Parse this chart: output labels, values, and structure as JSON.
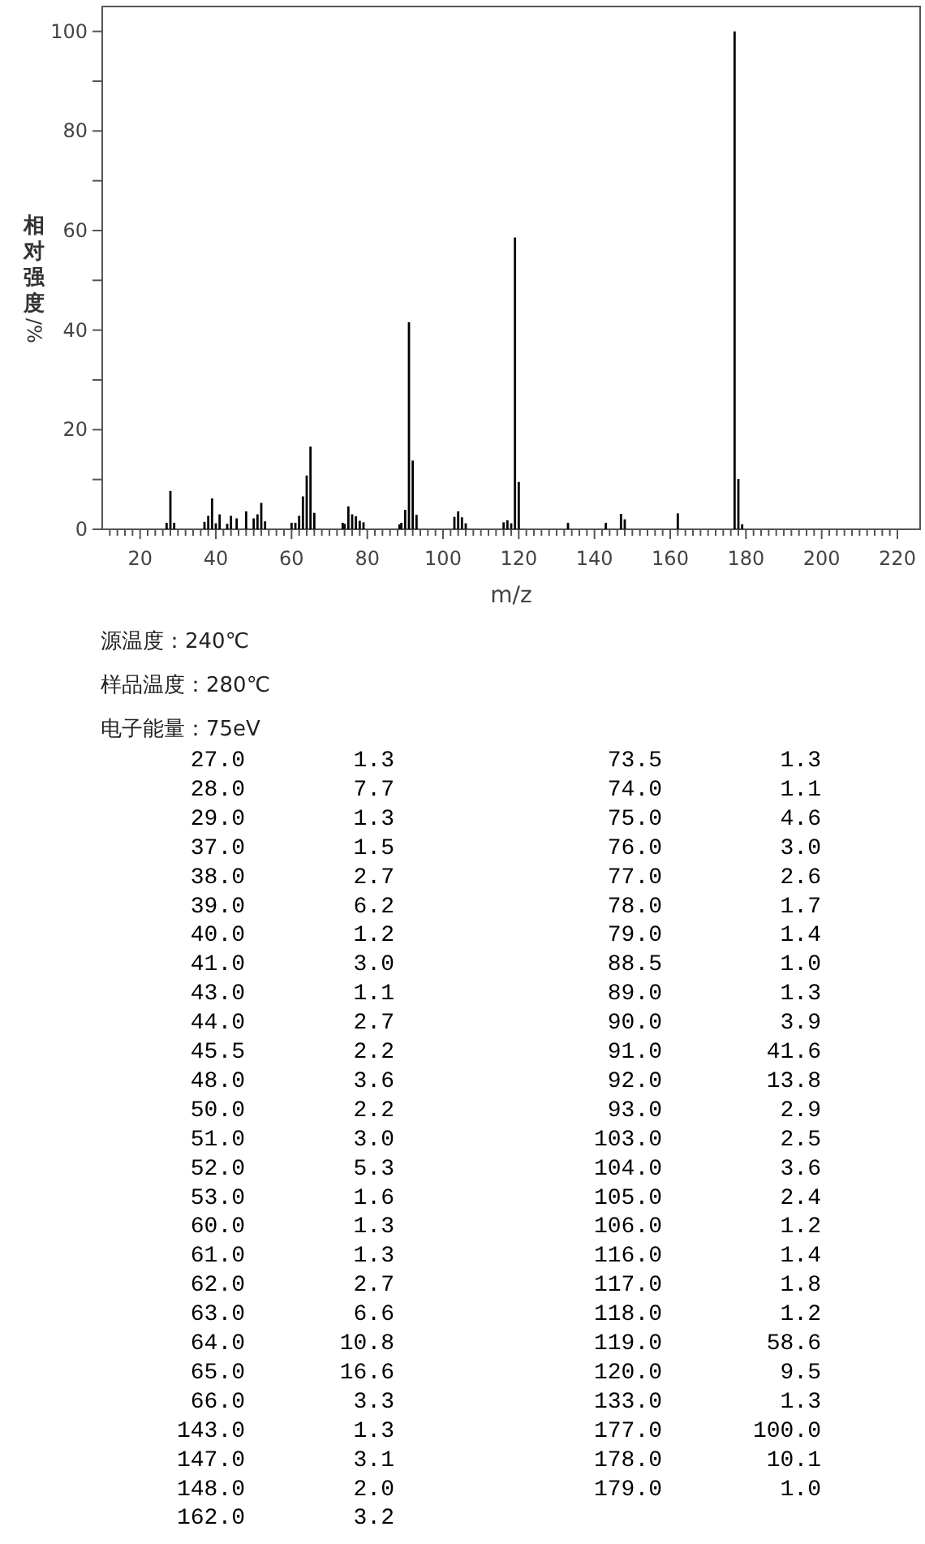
{
  "chart_data": [
    {
      "type": "bar",
      "xlabel": "m/z",
      "ylabel": "相对强度/%",
      "annotations": [
        "源温度：240℃",
        "样品温度：280℃",
        "电子能量：75eV"
      ],
      "x": [
        27,
        28,
        29,
        37,
        38,
        39,
        40,
        41,
        43,
        44,
        45.5,
        48,
        50,
        51,
        52,
        53,
        60,
        61,
        62,
        63,
        64,
        65,
        66,
        73.5,
        74,
        75,
        76,
        77,
        78,
        79,
        88.5,
        89,
        90,
        91,
        92,
        93,
        103,
        104,
        105,
        106,
        116,
        117,
        118,
        119,
        120,
        133,
        143,
        147,
        148,
        162,
        177,
        178,
        179
      ],
      "values": [
        1.3,
        7.7,
        1.3,
        1.5,
        2.7,
        6.2,
        1.2,
        3.0,
        1.1,
        2.7,
        2.2,
        3.6,
        2.2,
        3.0,
        5.3,
        1.6,
        1.3,
        1.3,
        2.7,
        6.6,
        10.8,
        16.6,
        3.3,
        1.3,
        1.1,
        4.6,
        3.0,
        2.6,
        1.7,
        1.4,
        1.0,
        1.3,
        3.9,
        41.6,
        13.8,
        2.9,
        2.5,
        3.6,
        2.4,
        1.2,
        1.4,
        1.8,
        1.2,
        58.6,
        9.5,
        1.3,
        1.3,
        3.1,
        2.0,
        3.2,
        100.0,
        10.1,
        1.0
      ],
      "color": "#000000",
      "xlim": [
        10,
        226
      ],
      "xticks": [
        {
          "value": 12,
          "label": null
        },
        {
          "value": 14,
          "label": null
        },
        {
          "value": 16,
          "label": null
        },
        {
          "value": 18,
          "label": null
        },
        20,
        {
          "value": 22,
          "label": null
        },
        {
          "value": 24,
          "label": null
        },
        {
          "value": 26,
          "label": null
        },
        {
          "value": 28,
          "label": null
        },
        {
          "value": 30,
          "label": null
        },
        {
          "value": 32,
          "label": null
        },
        {
          "value": 34,
          "label": null
        },
        {
          "value": 36,
          "label": null
        },
        {
          "value": 38,
          "label": null
        },
        40,
        {
          "value": 42,
          "label": null
        },
        {
          "value": 44,
          "label": null
        },
        {
          "value": 46,
          "label": null
        },
        {
          "value": 48,
          "label": null
        },
        {
          "value": 50,
          "label": null
        },
        {
          "value": 52,
          "label": null
        },
        {
          "value": 54,
          "label": null
        },
        {
          "value": 56,
          "label": null
        },
        {
          "value": 58,
          "label": null
        },
        60,
        {
          "value": 62,
          "label": null
        },
        {
          "value": 64,
          "label": null
        },
        {
          "value": 66,
          "label": null
        },
        {
          "value": 68,
          "label": null
        },
        {
          "value": 70,
          "label": null
        },
        {
          "value": 72,
          "label": null
        },
        {
          "value": 74,
          "label": null
        },
        {
          "value": 76,
          "label": null
        },
        {
          "value": 78,
          "label": null
        },
        80,
        {
          "value": 82,
          "label": null
        },
        {
          "value": 84,
          "label": null
        },
        {
          "value": 86,
          "label": null
        },
        {
          "value": 88,
          "label": null
        },
        {
          "value": 90,
          "label": null
        },
        {
          "value": 92,
          "label": null
        },
        {
          "value": 94,
          "label": null
        },
        {
          "value": 96,
          "label": null
        },
        {
          "value": 98,
          "label": null
        },
        100,
        {
          "value": 102,
          "label": null
        },
        {
          "value": 104,
          "label": null
        },
        {
          "value": 106,
          "label": null
        },
        {
          "value": 108,
          "label": null
        },
        {
          "value": 110,
          "label": null
        },
        {
          "value": 112,
          "label": null
        },
        {
          "value": 114,
          "label": null
        },
        {
          "value": 116,
          "label": null
        },
        {
          "value": 118,
          "label": null
        },
        120,
        {
          "value": 122,
          "label": null
        },
        {
          "value": 124,
          "label": null
        },
        {
          "value": 126,
          "label": null
        },
        {
          "value": 128,
          "label": null
        },
        {
          "value": 130,
          "label": null
        },
        {
          "value": 132,
          "label": null
        },
        {
          "value": 134,
          "label": null
        },
        {
          "value": 136,
          "label": null
        },
        {
          "value": 138,
          "label": null
        },
        140,
        {
          "value": 142,
          "label": null
        },
        {
          "value": 144,
          "label": null
        },
        {
          "value": 146,
          "label": null
        },
        {
          "value": 148,
          "label": null
        },
        {
          "value": 150,
          "label": null
        },
        {
          "value": 152,
          "label": null
        },
        {
          "value": 154,
          "label": null
        },
        {
          "value": 156,
          "label": null
        },
        {
          "value": 158,
          "label": null
        },
        160,
        {
          "value": 162,
          "label": null
        },
        {
          "value": 164,
          "label": null
        },
        {
          "value": 166,
          "label": null
        },
        {
          "value": 168,
          "label": null
        },
        {
          "value": 170,
          "label": null
        },
        {
          "value": 172,
          "label": null
        },
        {
          "value": 174,
          "label": null
        },
        {
          "value": 176,
          "label": null
        },
        {
          "value": 178,
          "label": null
        },
        180,
        {
          "value": 182,
          "label": null
        },
        {
          "value": 184,
          "label": null
        },
        {
          "value": 186,
          "label": null
        },
        {
          "value": 188,
          "label": null
        },
        {
          "value": 190,
          "label": null
        },
        {
          "value": 192,
          "label": null
        },
        {
          "value": 194,
          "label": null
        },
        {
          "value": 196,
          "label": null
        },
        {
          "value": 198,
          "label": null
        },
        200,
        {
          "value": 202,
          "label": null
        },
        {
          "value": 204,
          "label": null
        },
        {
          "value": 206,
          "label": null
        },
        {
          "value": 208,
          "label": null
        },
        {
          "value": 210,
          "label": null
        },
        {
          "value": 212,
          "label": null
        },
        {
          "value": 214,
          "label": null
        },
        {
          "value": 216,
          "label": null
        },
        {
          "value": 218,
          "label": null
        },
        220
      ],
      "ylim": [
        0,
        105
      ],
      "yticks": [
        0,
        {
          "value": 10,
          "label": null
        },
        20,
        {
          "value": 30,
          "label": null
        },
        40,
        {
          "value": 50,
          "label": null
        },
        60,
        {
          "value": 70,
          "label": null
        },
        80,
        {
          "value": 90,
          "label": null
        },
        100
      ]
    },
    {
      "type": "other",
      "categories": [
        "27.0",
        "28.0",
        "29.0",
        "37.0",
        "38.0",
        "39.0",
        "40.0",
        "41.0",
        "43.0",
        "44.0",
        "45.5",
        "48.0",
        "50.0",
        "51.0",
        "52.0",
        "53.0",
        "60.0",
        "61.0",
        "62.0",
        "63.0",
        "64.0",
        "65.0",
        "66.0",
        "143.0",
        "147.0",
        "148.0",
        "162.0",
        "73.5",
        "74.0",
        "75.0",
        "76.0",
        "77.0",
        "78.0",
        "79.0",
        "88.5",
        "89.0",
        "90.0",
        "91.0",
        "92.0",
        "93.0",
        "103.0",
        "104.0",
        "105.0",
        "106.0",
        "116.0",
        "117.0",
        "118.0",
        "119.0",
        "120.0",
        "133.0",
        "177.0",
        "178.0",
        "179.0"
      ],
      "value_labels": [
        "1.3",
        "7.7",
        "1.3",
        "1.5",
        "2.7",
        "6.2",
        "1.2",
        "3.0",
        "1.1",
        "2.7",
        "2.2",
        "3.6",
        "2.2",
        "3.0",
        "5.3",
        "1.6",
        "1.3",
        "1.3",
        "2.7",
        "6.6",
        "10.8",
        "16.6",
        "3.3",
        "1.3",
        "3.1",
        "2.0",
        "3.2",
        "1.3",
        "1.1",
        "4.6",
        "3.0",
        "2.6",
        "1.7",
        "1.4",
        "1.0",
        "1.3",
        "3.9",
        "41.6",
        "13.8",
        "2.9",
        "2.5",
        "3.6",
        "2.4",
        "1.2",
        "1.4",
        "1.8",
        "1.2",
        "58.6",
        "9.5",
        "1.3",
        "100.0",
        "10.1",
        "1.0"
      ]
    }
  ]
}
